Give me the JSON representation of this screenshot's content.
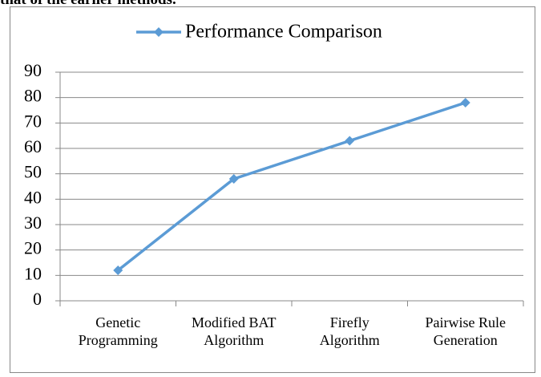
{
  "text": "that of the earlier methods.",
  "chart_data": {
    "type": "line",
    "categories": [
      "Genetic Programming",
      "Modified BAT Algorithm",
      "Firefly Algorithm",
      "Pairwise Rule Generation"
    ],
    "series": [
      {
        "name": "Performance Comparison",
        "color": "#5b9bd5",
        "values": [
          12,
          48,
          63,
          78
        ]
      }
    ],
    "ylim": [
      0,
      90
    ],
    "yticks": [
      0,
      10,
      20,
      30,
      40,
      50,
      60,
      70,
      80,
      90
    ],
    "grid": true,
    "legend": "top"
  }
}
